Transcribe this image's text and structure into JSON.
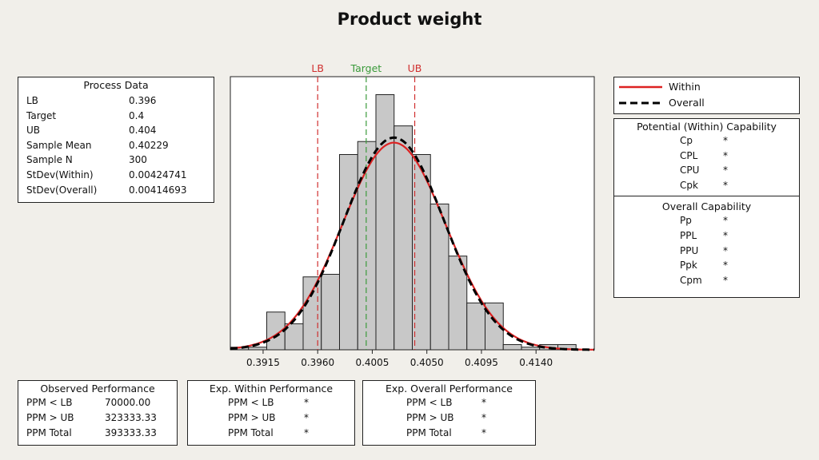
{
  "title": "Product weight",
  "process_data": {
    "header": "Process Data",
    "rows": [
      {
        "label": "LB",
        "value": "0.396"
      },
      {
        "label": "Target",
        "value": "0.4"
      },
      {
        "label": "UB",
        "value": "0.404"
      },
      {
        "label": "Sample Mean",
        "value": "0.40229"
      },
      {
        "label": "Sample N",
        "value": "300"
      },
      {
        "label": "StDev(Within)",
        "value": "0.00424741"
      },
      {
        "label": "StDev(Overall)",
        "value": "0.00414693"
      }
    ]
  },
  "legend": {
    "within_label": "Within",
    "overall_label": "Overall"
  },
  "within_capability": {
    "header": "Potential (Within) Capability",
    "rows": [
      {
        "label": "Cp",
        "value": "*"
      },
      {
        "label": "CPL",
        "value": "*"
      },
      {
        "label": "CPU",
        "value": "*"
      },
      {
        "label": "Cpk",
        "value": "*"
      }
    ]
  },
  "overall_capability": {
    "header": "Overall Capability",
    "rows": [
      {
        "label": "Pp",
        "value": "*"
      },
      {
        "label": "PPL",
        "value": "*"
      },
      {
        "label": "PPU",
        "value": "*"
      },
      {
        "label": "Ppk",
        "value": "*"
      },
      {
        "label": "Cpm",
        "value": "*"
      }
    ]
  },
  "observed_performance": {
    "header": "Observed Performance",
    "rows": [
      {
        "label": "PPM < LB",
        "value": "70000.00"
      },
      {
        "label": "PPM > UB",
        "value": "323333.33"
      },
      {
        "label": "PPM Total",
        "value": "393333.33"
      }
    ]
  },
  "exp_within_performance": {
    "header": "Exp. Within Performance",
    "rows": [
      {
        "label": "PPM < LB",
        "value": "*"
      },
      {
        "label": "PPM > UB",
        "value": "*"
      },
      {
        "label": "PPM Total",
        "value": "*"
      }
    ]
  },
  "exp_overall_performance": {
    "header": "Exp. Overall Performance",
    "rows": [
      {
        "label": "PPM < LB",
        "value": "*"
      },
      {
        "label": "PPM > UB",
        "value": "*"
      },
      {
        "label": "PPM Total",
        "value": "*"
      }
    ]
  },
  "chart_data": {
    "type": "bar",
    "subtype": "histogram_with_normal_curves",
    "x_range": [
      0.3888,
      0.4188
    ],
    "y_max": 1.0,
    "x_ticks": [
      "0.3915",
      "0.3960",
      "0.4005",
      "0.4050",
      "0.4095",
      "0.4140"
    ],
    "x_tick_values": [
      0.3915,
      0.396,
      0.4005,
      0.405,
      0.4095,
      0.414
    ],
    "bin_width": 0.0015,
    "bins": [
      {
        "start": 0.3888,
        "height": 0.01
      },
      {
        "start": 0.3903,
        "height": 0.01
      },
      {
        "start": 0.3918,
        "height": 0.145
      },
      {
        "start": 0.3933,
        "height": 0.1
      },
      {
        "start": 0.3948,
        "height": 0.28
      },
      {
        "start": 0.3963,
        "height": 0.29
      },
      {
        "start": 0.3978,
        "height": 0.75
      },
      {
        "start": 0.3993,
        "height": 0.8
      },
      {
        "start": 0.4008,
        "height": 0.98
      },
      {
        "start": 0.4023,
        "height": 0.86
      },
      {
        "start": 0.4038,
        "height": 0.75
      },
      {
        "start": 0.4053,
        "height": 0.56
      },
      {
        "start": 0.4068,
        "height": 0.36
      },
      {
        "start": 0.4083,
        "height": 0.18
      },
      {
        "start": 0.4098,
        "height": 0.18
      },
      {
        "start": 0.4113,
        "height": 0.02
      },
      {
        "start": 0.4128,
        "height": 0.01
      },
      {
        "start": 0.4143,
        "height": 0.02
      },
      {
        "start": 0.4158,
        "height": 0.02
      }
    ],
    "ref_lines": [
      {
        "label": "LB",
        "x": 0.396,
        "color": "#d03030"
      },
      {
        "label": "Target",
        "x": 0.4,
        "color": "#3a9a3a"
      },
      {
        "label": "UB",
        "x": 0.404,
        "color": "#d03030"
      }
    ],
    "curves": [
      {
        "name": "Within",
        "mean": 0.40229,
        "sd": 0.00424741,
        "color": "#dd2222",
        "style": "solid"
      },
      {
        "name": "Overall",
        "mean": 0.40229,
        "sd": 0.00414693,
        "color": "#000000",
        "style": "dashed"
      }
    ]
  }
}
